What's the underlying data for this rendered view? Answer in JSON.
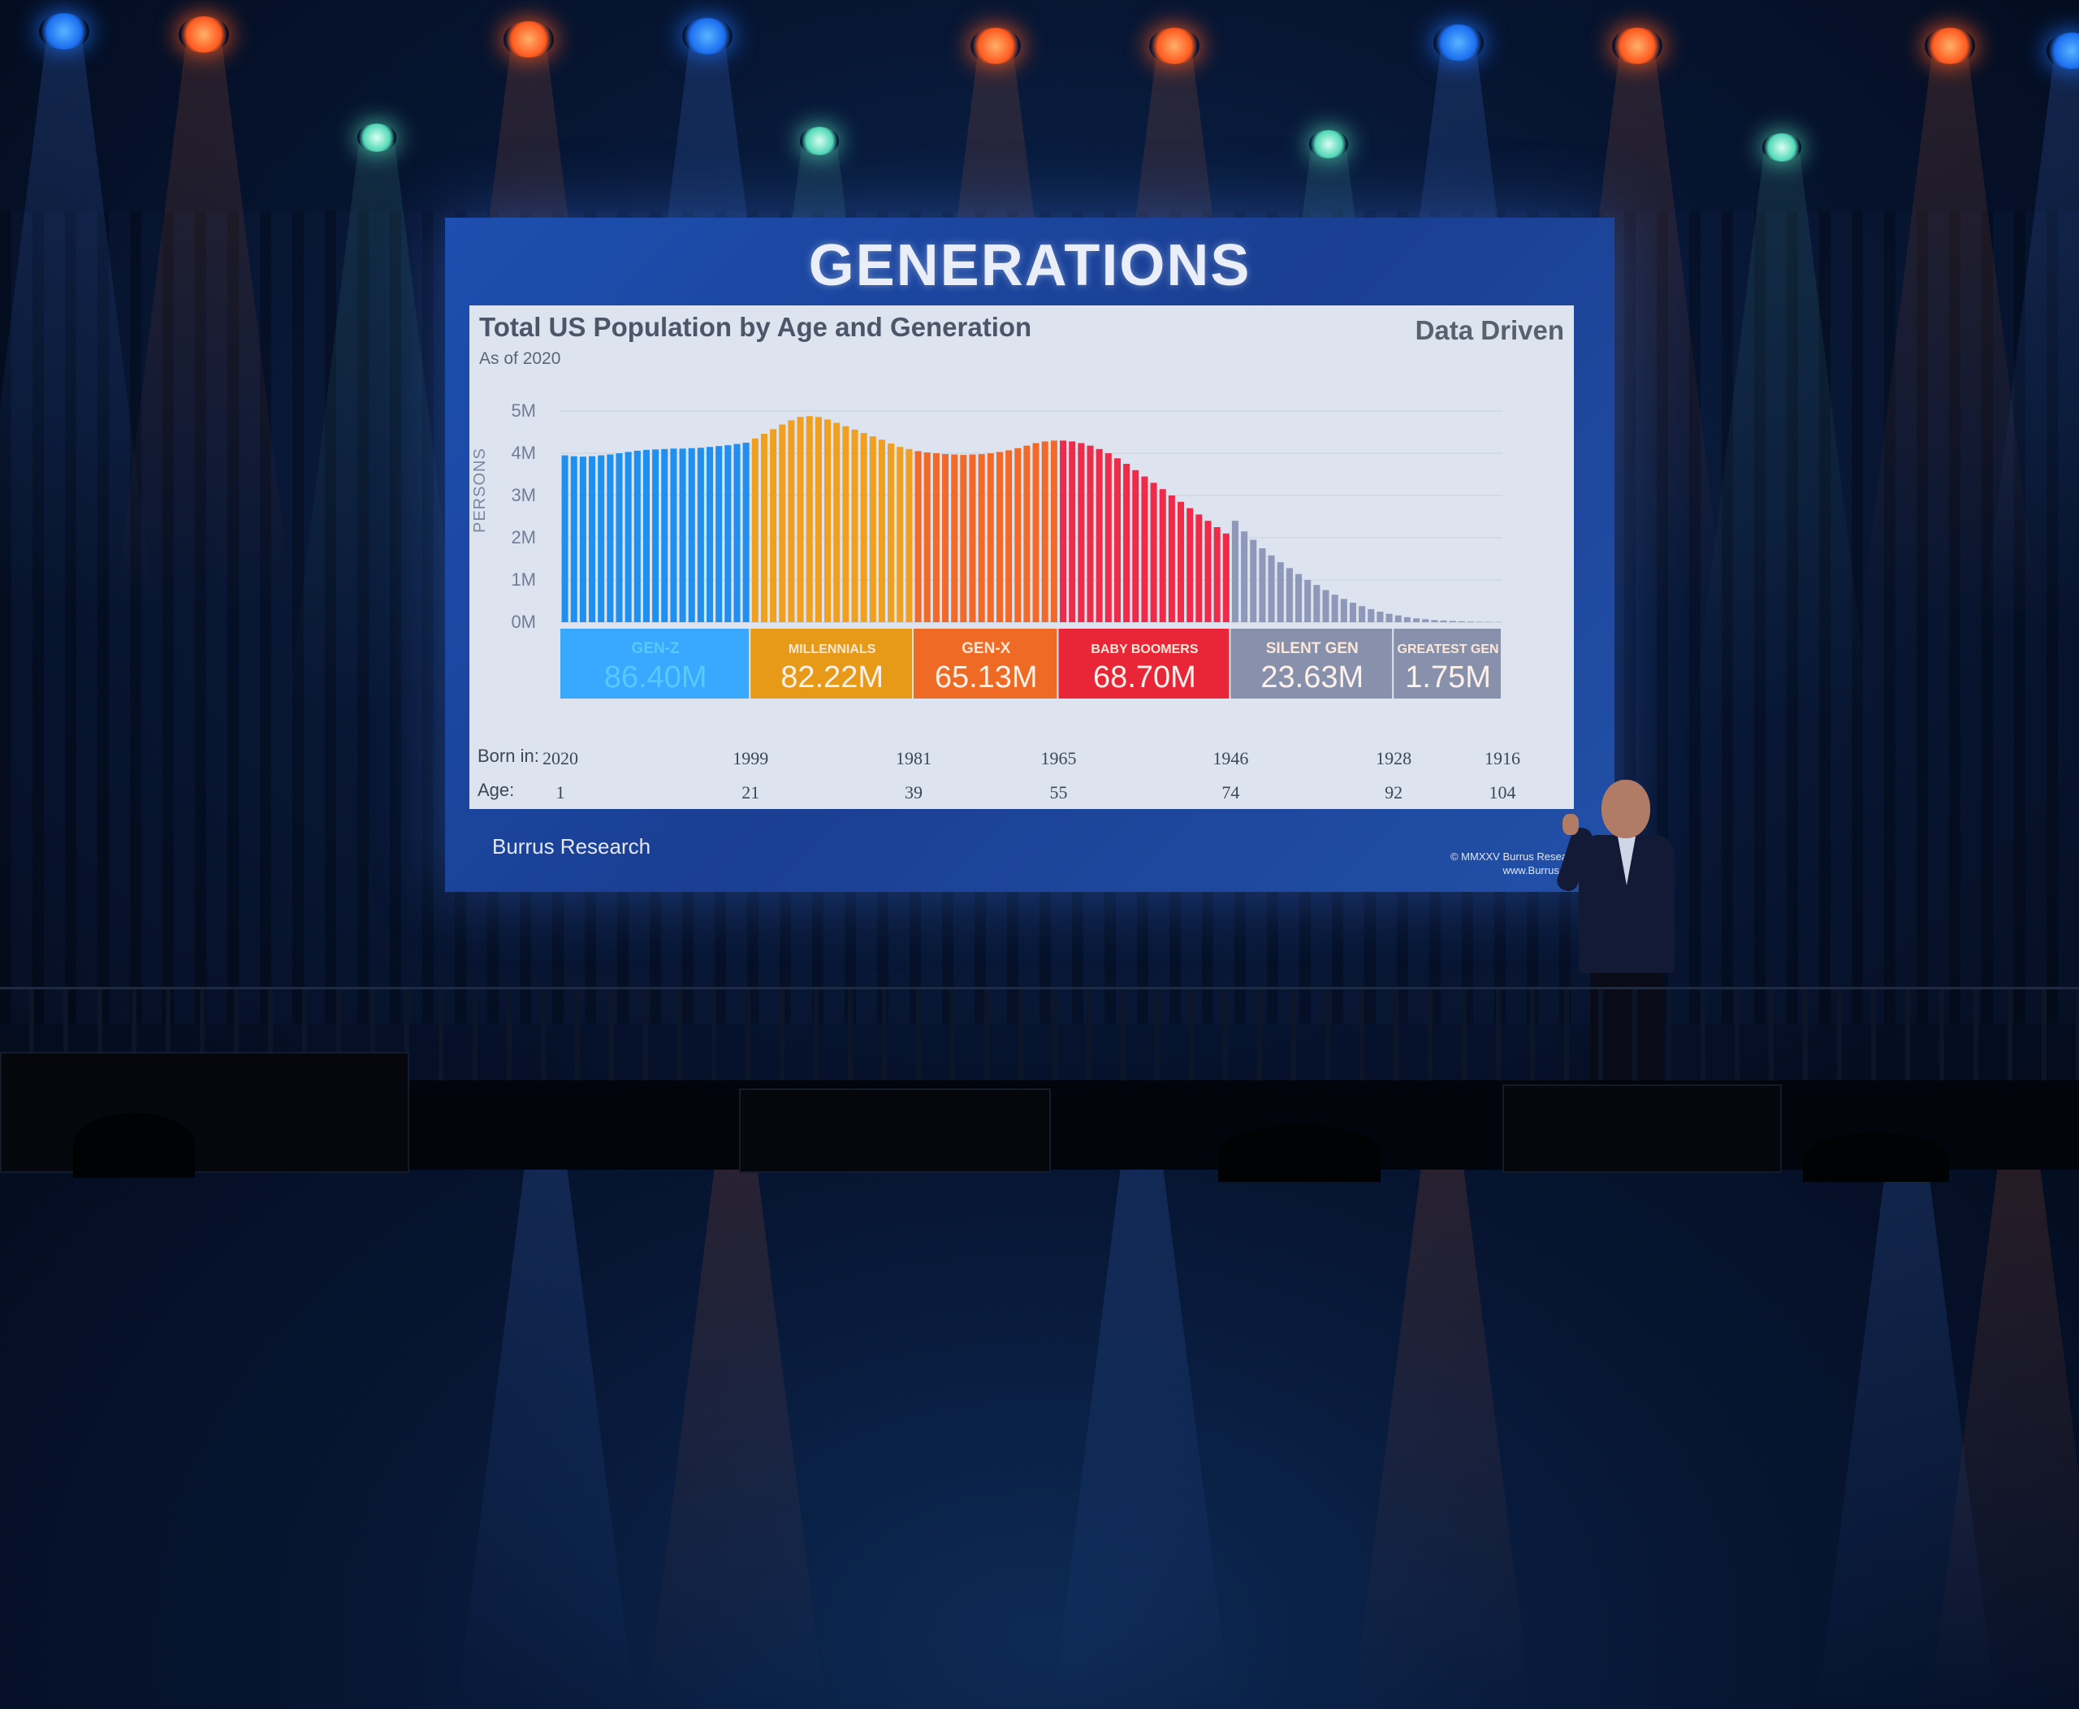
{
  "slide": {
    "heading": "GENERATIONS",
    "chart_title": "Total US Population by Age and Generation",
    "chart_subtitle": "As of 2020",
    "brand_tag": "Data Driven",
    "y_axis_label": "PERSONS",
    "row_label_born": "Born in:",
    "row_label_age": "Age:",
    "logo": "Burrus Research",
    "credit_line1": "© MMXXV Burrus Research",
    "credit_line2": "www.Burrus.com"
  },
  "chart_data": {
    "type": "bar",
    "title": "Total US Population by Age and Generation",
    "subtitle": "As of 2020",
    "ylabel": "PERSONS",
    "ylim": [
      0,
      5
    ],
    "y_ticks": [
      "0M",
      "1M",
      "2M",
      "3M",
      "4M",
      "5M"
    ],
    "grid": true,
    "generations": [
      {
        "name": "GEN-Z",
        "total": "86.40M",
        "color": "#1f8ff0",
        "value_color": "#38a9ff",
        "ages": [
          0,
          21
        ]
      },
      {
        "name": "MILLENNIALS",
        "total": "82.22M",
        "color": "#f0a020",
        "value_color": "#e79a18",
        "ages": [
          21,
          39
        ]
      },
      {
        "name": "GEN-X",
        "total": "65.13M",
        "color": "#f26a2a",
        "value_color": "#ef6a25",
        "ages": [
          39,
          55
        ]
      },
      {
        "name": "BABY BOOMERS",
        "total": "68.70M",
        "color": "#ee2c4a",
        "value_color": "#e82638",
        "ages": [
          55,
          74
        ]
      },
      {
        "name": "SILENT GEN",
        "total": "23.63M",
        "color": "#8e98b8",
        "value_color": "#9aa3c0",
        "ages": [
          74,
          92
        ]
      },
      {
        "name": "GREATEST GEN",
        "total": "1.75M",
        "color": "#8e98b8",
        "value_color": "#848ea9",
        "ages": [
          92,
          104
        ]
      }
    ],
    "series_millions_by_age": [
      3.95,
      3.93,
      3.92,
      3.93,
      3.95,
      3.97,
      4.0,
      4.03,
      4.06,
      4.08,
      4.09,
      4.1,
      4.11,
      4.11,
      4.12,
      4.13,
      4.15,
      4.17,
      4.19,
      4.22,
      4.25,
      4.35,
      4.46,
      4.57,
      4.68,
      4.78,
      4.86,
      4.88,
      4.86,
      4.8,
      4.72,
      4.64,
      4.56,
      4.48,
      4.4,
      4.32,
      4.23,
      4.15,
      4.1,
      4.05,
      4.02,
      4.0,
      3.98,
      3.97,
      3.96,
      3.97,
      3.98,
      4.0,
      4.03,
      4.07,
      4.12,
      4.18,
      4.24,
      4.28,
      4.3,
      4.3,
      4.28,
      4.24,
      4.18,
      4.1,
      4.0,
      3.88,
      3.75,
      3.6,
      3.45,
      3.3,
      3.15,
      3.0,
      2.85,
      2.7,
      2.55,
      2.4,
      2.25,
      2.1,
      2.4,
      2.15,
      1.95,
      1.75,
      1.58,
      1.42,
      1.28,
      1.14,
      1.0,
      0.88,
      0.76,
      0.65,
      0.55,
      0.46,
      0.38,
      0.31,
      0.25,
      0.2,
      0.16,
      0.12,
      0.09,
      0.07,
      0.05,
      0.04,
      0.03,
      0.02,
      0.015,
      0.01,
      0.008,
      0.005
    ],
    "born_in_ticks": [
      {
        "label": "2020",
        "age": 0
      },
      {
        "label": "1999",
        "age": 21
      },
      {
        "label": "1981",
        "age": 39
      },
      {
        "label": "1965",
        "age": 55
      },
      {
        "label": "1946",
        "age": 74
      },
      {
        "label": "1928",
        "age": 92
      },
      {
        "label": "1916",
        "age": 104
      }
    ],
    "age_ticks": [
      {
        "label": "1",
        "age": 0
      },
      {
        "label": "21",
        "age": 21
      },
      {
        "label": "39",
        "age": 39
      },
      {
        "label": "55",
        "age": 55
      },
      {
        "label": "74",
        "age": 74
      },
      {
        "label": "92",
        "age": 92
      },
      {
        "label": "104",
        "age": 104
      }
    ]
  },
  "lights_top": [
    "blue",
    "orange",
    "orange",
    "blue",
    "orange",
    "orange",
    "blue",
    "orange",
    "orange",
    "blue"
  ],
  "lights_mid": [
    "teal",
    "teal",
    "teal",
    "teal"
  ],
  "lights_floor": [
    "blue",
    "orange",
    "blue",
    "orange",
    "blue",
    "orange"
  ]
}
